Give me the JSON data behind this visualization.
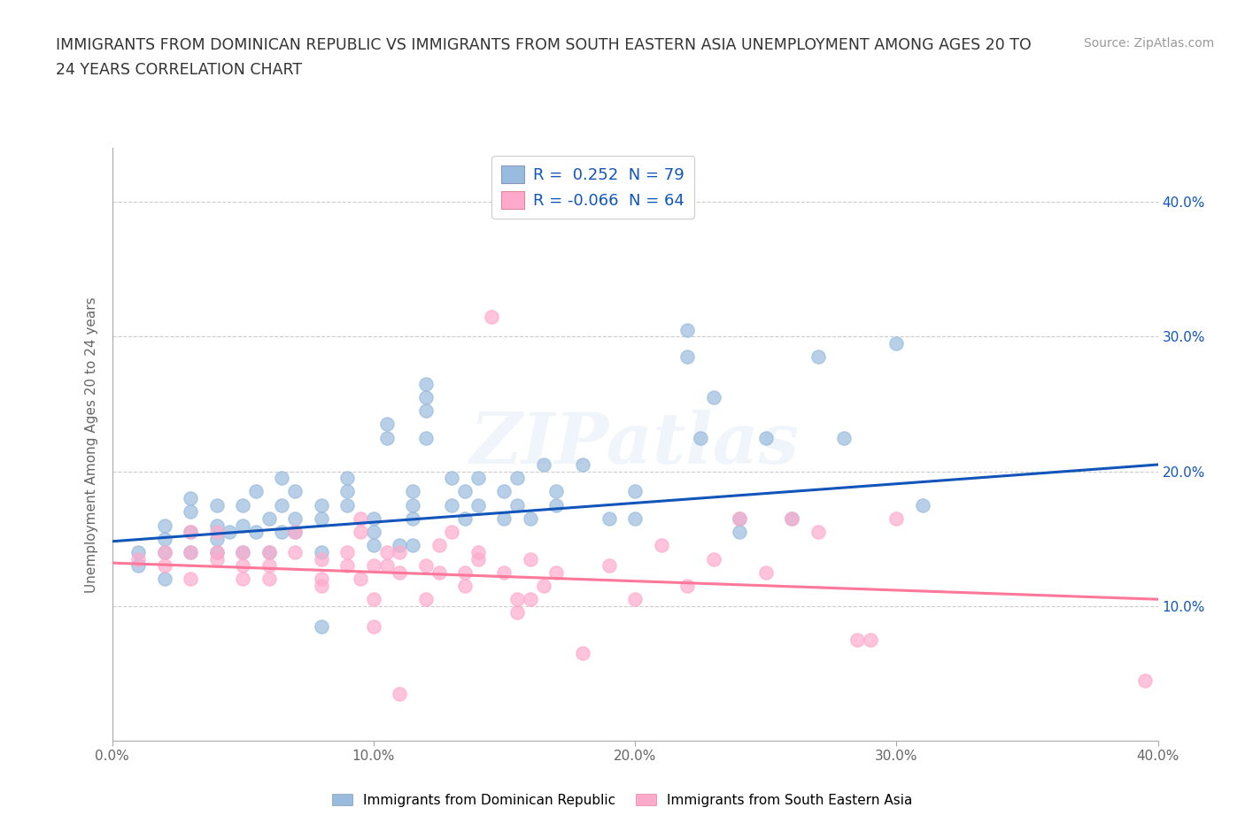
{
  "title_line1": "IMMIGRANTS FROM DOMINICAN REPUBLIC VS IMMIGRANTS FROM SOUTH EASTERN ASIA UNEMPLOYMENT AMONG AGES 20 TO",
  "title_line2": "24 YEARS CORRELATION CHART",
  "source": "Source: ZipAtlas.com",
  "ylabel": "Unemployment Among Ages 20 to 24 years",
  "xlim": [
    0.0,
    0.4
  ],
  "ylim": [
    0.0,
    0.44
  ],
  "xticks": [
    0.0,
    0.1,
    0.2,
    0.3,
    0.4
  ],
  "yticks": [
    0.1,
    0.2,
    0.3,
    0.4
  ],
  "xtick_labels": [
    "0.0%",
    "10.0%",
    "20.0%",
    "30.0%",
    "40.0%"
  ],
  "ytick_labels_right": [
    "10.0%",
    "20.0%",
    "30.0%",
    "40.0%"
  ],
  "color_blue": "#99BBDD",
  "color_pink": "#FFAACC",
  "line_blue": "#1155BB",
  "line_pink": "#FF7799",
  "watermark": "ZIPatlas",
  "blue_scatter": [
    [
      0.01,
      0.14
    ],
    [
      0.01,
      0.13
    ],
    [
      0.02,
      0.16
    ],
    [
      0.02,
      0.14
    ],
    [
      0.02,
      0.15
    ],
    [
      0.02,
      0.12
    ],
    [
      0.03,
      0.155
    ],
    [
      0.03,
      0.17
    ],
    [
      0.03,
      0.14
    ],
    [
      0.03,
      0.18
    ],
    [
      0.04,
      0.16
    ],
    [
      0.04,
      0.15
    ],
    [
      0.04,
      0.175
    ],
    [
      0.04,
      0.14
    ],
    [
      0.045,
      0.155
    ],
    [
      0.05,
      0.16
    ],
    [
      0.05,
      0.14
    ],
    [
      0.05,
      0.175
    ],
    [
      0.055,
      0.155
    ],
    [
      0.055,
      0.185
    ],
    [
      0.06,
      0.14
    ],
    [
      0.06,
      0.165
    ],
    [
      0.065,
      0.155
    ],
    [
      0.065,
      0.195
    ],
    [
      0.065,
      0.175
    ],
    [
      0.07,
      0.165
    ],
    [
      0.07,
      0.155
    ],
    [
      0.07,
      0.185
    ],
    [
      0.08,
      0.175
    ],
    [
      0.08,
      0.165
    ],
    [
      0.08,
      0.14
    ],
    [
      0.08,
      0.085
    ],
    [
      0.09,
      0.185
    ],
    [
      0.09,
      0.195
    ],
    [
      0.09,
      0.175
    ],
    [
      0.1,
      0.145
    ],
    [
      0.1,
      0.165
    ],
    [
      0.1,
      0.155
    ],
    [
      0.105,
      0.225
    ],
    [
      0.105,
      0.235
    ],
    [
      0.11,
      0.145
    ],
    [
      0.115,
      0.165
    ],
    [
      0.115,
      0.175
    ],
    [
      0.115,
      0.145
    ],
    [
      0.115,
      0.185
    ],
    [
      0.12,
      0.255
    ],
    [
      0.12,
      0.265
    ],
    [
      0.12,
      0.225
    ],
    [
      0.12,
      0.245
    ],
    [
      0.13,
      0.195
    ],
    [
      0.13,
      0.175
    ],
    [
      0.135,
      0.185
    ],
    [
      0.135,
      0.165
    ],
    [
      0.14,
      0.175
    ],
    [
      0.14,
      0.195
    ],
    [
      0.15,
      0.165
    ],
    [
      0.15,
      0.185
    ],
    [
      0.155,
      0.195
    ],
    [
      0.155,
      0.175
    ],
    [
      0.16,
      0.165
    ],
    [
      0.165,
      0.205
    ],
    [
      0.17,
      0.185
    ],
    [
      0.17,
      0.175
    ],
    [
      0.18,
      0.205
    ],
    [
      0.19,
      0.165
    ],
    [
      0.2,
      0.185
    ],
    [
      0.2,
      0.165
    ],
    [
      0.22,
      0.305
    ],
    [
      0.22,
      0.285
    ],
    [
      0.225,
      0.225
    ],
    [
      0.23,
      0.255
    ],
    [
      0.24,
      0.165
    ],
    [
      0.24,
      0.155
    ],
    [
      0.25,
      0.225
    ],
    [
      0.26,
      0.165
    ],
    [
      0.27,
      0.285
    ],
    [
      0.28,
      0.225
    ],
    [
      0.3,
      0.295
    ],
    [
      0.31,
      0.175
    ]
  ],
  "pink_scatter": [
    [
      0.01,
      0.135
    ],
    [
      0.02,
      0.14
    ],
    [
      0.02,
      0.13
    ],
    [
      0.03,
      0.14
    ],
    [
      0.03,
      0.12
    ],
    [
      0.03,
      0.155
    ],
    [
      0.04,
      0.14
    ],
    [
      0.04,
      0.135
    ],
    [
      0.04,
      0.155
    ],
    [
      0.05,
      0.13
    ],
    [
      0.05,
      0.14
    ],
    [
      0.05,
      0.12
    ],
    [
      0.06,
      0.14
    ],
    [
      0.06,
      0.13
    ],
    [
      0.06,
      0.12
    ],
    [
      0.07,
      0.155
    ],
    [
      0.07,
      0.14
    ],
    [
      0.08,
      0.135
    ],
    [
      0.08,
      0.12
    ],
    [
      0.08,
      0.115
    ],
    [
      0.09,
      0.14
    ],
    [
      0.09,
      0.13
    ],
    [
      0.095,
      0.12
    ],
    [
      0.095,
      0.155
    ],
    [
      0.095,
      0.165
    ],
    [
      0.1,
      0.13
    ],
    [
      0.1,
      0.085
    ],
    [
      0.1,
      0.105
    ],
    [
      0.105,
      0.14
    ],
    [
      0.105,
      0.13
    ],
    [
      0.11,
      0.125
    ],
    [
      0.11,
      0.14
    ],
    [
      0.11,
      0.035
    ],
    [
      0.12,
      0.13
    ],
    [
      0.12,
      0.105
    ],
    [
      0.125,
      0.125
    ],
    [
      0.125,
      0.145
    ],
    [
      0.13,
      0.155
    ],
    [
      0.135,
      0.125
    ],
    [
      0.135,
      0.115
    ],
    [
      0.14,
      0.135
    ],
    [
      0.14,
      0.14
    ],
    [
      0.145,
      0.315
    ],
    [
      0.15,
      0.125
    ],
    [
      0.155,
      0.105
    ],
    [
      0.155,
      0.095
    ],
    [
      0.16,
      0.135
    ],
    [
      0.16,
      0.105
    ],
    [
      0.165,
      0.115
    ],
    [
      0.17,
      0.125
    ],
    [
      0.18,
      0.065
    ],
    [
      0.19,
      0.13
    ],
    [
      0.2,
      0.105
    ],
    [
      0.21,
      0.145
    ],
    [
      0.22,
      0.115
    ],
    [
      0.23,
      0.135
    ],
    [
      0.24,
      0.165
    ],
    [
      0.25,
      0.125
    ],
    [
      0.26,
      0.165
    ],
    [
      0.27,
      0.155
    ],
    [
      0.285,
      0.075
    ],
    [
      0.29,
      0.075
    ],
    [
      0.3,
      0.165
    ],
    [
      0.395,
      0.045
    ]
  ],
  "blue_line_x": [
    0.0,
    0.4
  ],
  "blue_line_y": [
    0.148,
    0.205
  ],
  "pink_line_x": [
    0.0,
    0.4
  ],
  "pink_line_y": [
    0.132,
    0.105
  ],
  "bg_color": "#FFFFFF",
  "grid_color": "#CCCCCC",
  "legend_label_blue": "R =  0.252  N = 79",
  "legend_label_pink": "R = -0.066  N = 64",
  "bottom_legend_blue": "Immigrants from Dominican Republic",
  "bottom_legend_pink": "Immigrants from South Eastern Asia"
}
